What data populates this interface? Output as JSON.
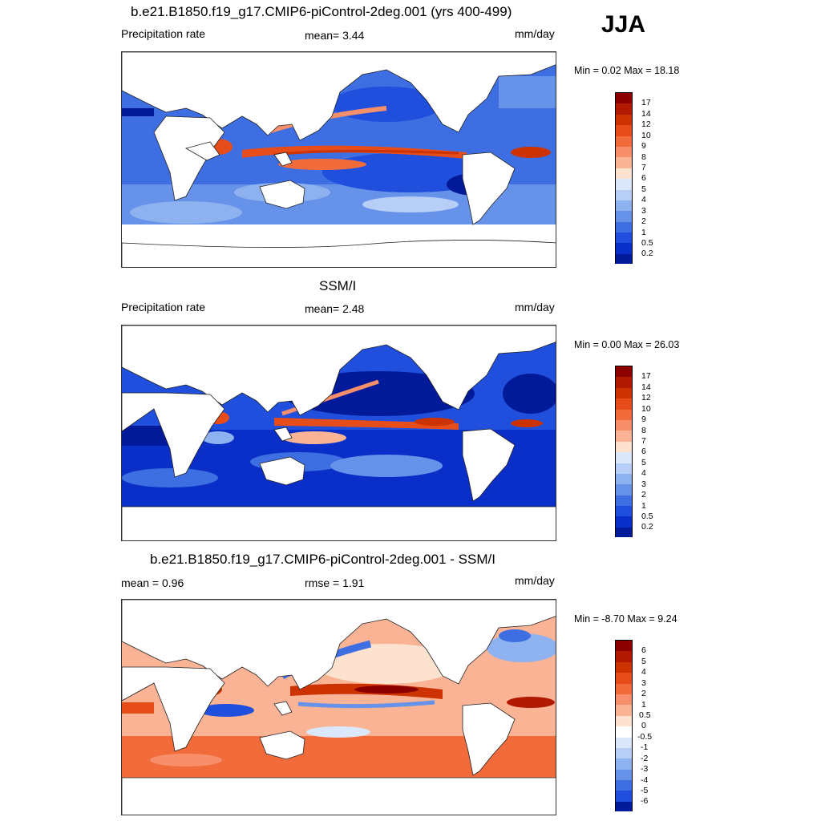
{
  "season": "JJA",
  "panels": [
    {
      "title": "b.e21.B1850.f19_g17.CMIP6-piControl-2deg.001 (yrs 400-499)",
      "left_label": "Precipitation rate",
      "center_label": "mean=   3.44",
      "units": "mm/day",
      "minmax": "Min =   0.02 Max =  18.18"
    },
    {
      "title": "SSM/I",
      "left_label": "Precipitation rate",
      "center_label": "mean=   2.48",
      "units": "mm/day",
      "minmax": "Min =   0.00 Max =  26.03"
    },
    {
      "title": "b.e21.B1850.f19_g17.CMIP6-piControl-2deg.001 - SSM/I",
      "left_label": "mean =   0.96",
      "center_label": "rmse =   1.91",
      "units": "mm/day",
      "minmax": "Min =  -8.70 Max =   9.24"
    }
  ],
  "colorbars": {
    "precip": {
      "labels": [
        "17",
        "14",
        "12",
        "10",
        "9",
        "8",
        "7",
        "6",
        "5",
        "4",
        "3",
        "2",
        "1",
        "0.5",
        "0.2"
      ],
      "colors": [
        "#8c0000",
        "#b21a00",
        "#cc3300",
        "#e64d1a",
        "#f26b3a",
        "#f7906a",
        "#fab395",
        "#fde3cf",
        "#dbe8fb",
        "#b7cff6",
        "#8eb1f0",
        "#6692ea",
        "#3d6fe3",
        "#1f4fdc",
        "#0a2fc8",
        "#001a99"
      ]
    },
    "diff": {
      "labels": [
        "6",
        "5",
        "4",
        "3",
        "2",
        "1",
        "0.5",
        "0",
        "-0.5",
        "-1",
        "-2",
        "-3",
        "-4",
        "-5",
        "-6"
      ],
      "colors": [
        "#8c0000",
        "#b21a00",
        "#cc3300",
        "#e64d1a",
        "#f26b3a",
        "#f7906a",
        "#fab395",
        "#fde3cf",
        "#ffffff",
        "#dbe8fb",
        "#b7cff6",
        "#8eb1f0",
        "#6692ea",
        "#3d6fe3",
        "#1f4fdc",
        "#001a99"
      ]
    }
  }
}
